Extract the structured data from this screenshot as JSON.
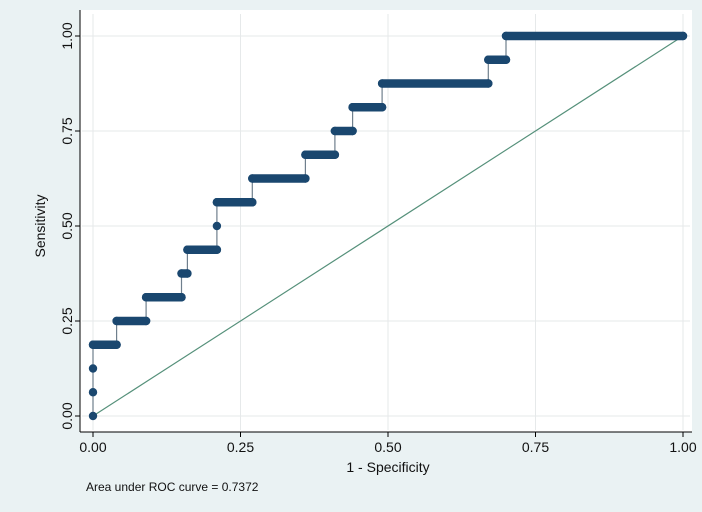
{
  "chart_data": {
    "type": "line",
    "xlabel": "1 - Specificity",
    "ylabel": "Sensitivity",
    "xlim": [
      0,
      1
    ],
    "ylim": [
      0,
      1
    ],
    "x_ticks": [
      0,
      0.25,
      0.5,
      0.75,
      1
    ],
    "x_tick_labels": [
      "0.00",
      "0.25",
      "0.50",
      "0.75",
      "1.00"
    ],
    "y_ticks": [
      0,
      0.25,
      0.5,
      0.75,
      1
    ],
    "y_tick_labels": [
      "0.00",
      "0.25",
      "0.50",
      "0.75",
      "1.00"
    ],
    "grid": true,
    "annotation": "Area under ROC curve = 0.7372",
    "colors": {
      "background": "#eaf2f3",
      "plot_area": "#ffffff",
      "roc": "#1a476f",
      "reference": "#55907a"
    },
    "series": [
      {
        "points": [
          [
            0,
            0
          ],
          [
            0,
            0.0625
          ],
          [
            0,
            0.125
          ],
          [
            0,
            0.1875
          ],
          [
            0.04,
            0.1875
          ],
          [
            0.04,
            0.25
          ],
          [
            0.09,
            0.25
          ],
          [
            0.09,
            0.3125
          ],
          [
            0.15,
            0.3125
          ],
          [
            0.15,
            0.375
          ],
          [
            0.16,
            0.375
          ],
          [
            0.16,
            0.4375
          ],
          [
            0.21,
            0.4375
          ],
          [
            0.21,
            0.5
          ],
          [
            0.21,
            0.5625
          ],
          [
            0.27,
            0.5625
          ],
          [
            0.27,
            0.625
          ],
          [
            0.36,
            0.625
          ],
          [
            0.36,
            0.6875
          ],
          [
            0.41,
            0.6875
          ],
          [
            0.41,
            0.75
          ],
          [
            0.44,
            0.75
          ],
          [
            0.44,
            0.8125
          ],
          [
            0.49,
            0.8125
          ],
          [
            0.49,
            0.875
          ],
          [
            0.67,
            0.875
          ],
          [
            0.67,
            0.9375
          ],
          [
            0.7,
            0.9375
          ],
          [
            0.7,
            1
          ],
          [
            1,
            1
          ]
        ]
      },
      {
        "points": [
          [
            0,
            0
          ],
          [
            1,
            1
          ]
        ]
      }
    ]
  }
}
